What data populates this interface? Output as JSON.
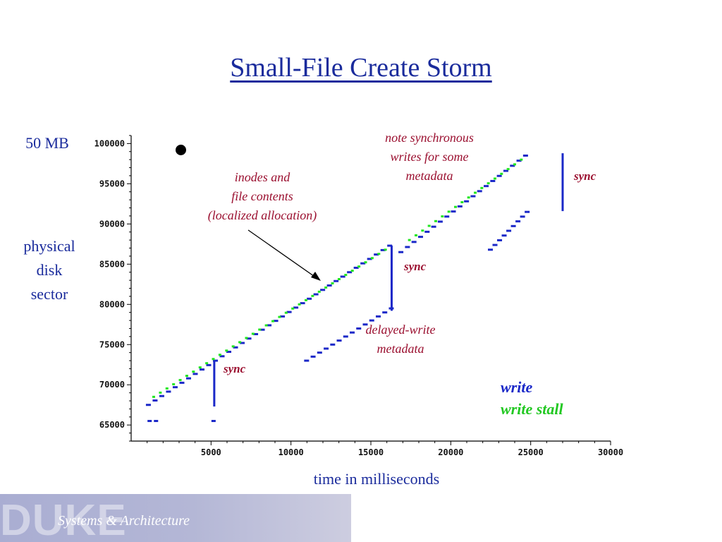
{
  "slide": {
    "title": "Small-File Create Storm",
    "label_50mb": "50 MB",
    "ylabel_lines": [
      "physical",
      "disk",
      "sector"
    ],
    "xlabel": "time in milliseconds",
    "annotations": {
      "inodes": [
        "inodes and",
        "file contents",
        "(localized allocation)"
      ],
      "note": [
        "note synchronous",
        "writes for some",
        "metadata"
      ],
      "delayed": [
        "delayed-write",
        "metadata"
      ]
    },
    "sync_labels": [
      "sync",
      "sync",
      "sync"
    ],
    "legend": {
      "write": "write",
      "write_stall": "write stall"
    },
    "footer": {
      "logo_text": "DUKE",
      "text": "Systems & Architecture"
    }
  },
  "colors": {
    "write": "#1a28c8",
    "write_stall": "#22e622",
    "accent": "#1a2b9c",
    "annotation": "#9b1030"
  },
  "chart_data": {
    "type": "scatter",
    "xlim": [
      0,
      30000
    ],
    "ylim": [
      63000,
      101000
    ],
    "xticks": [
      5000,
      10000,
      15000,
      20000,
      25000,
      30000
    ],
    "yticks": [
      65000,
      70000,
      75000,
      80000,
      85000,
      90000,
      95000,
      100000
    ],
    "grid": false,
    "series": [
      {
        "name": "write",
        "segments": [
          {
            "kind": "ramp",
            "x": [
              1100,
              16200
            ],
            "y": [
              67500,
              87300
            ]
          },
          {
            "kind": "ramp",
            "x": [
              16900,
              24700
            ],
            "y": [
              86500,
              98500
            ]
          },
          {
            "kind": "ramp",
            "x": [
              11000,
              16300
            ],
            "y": [
              73000,
              79500
            ]
          },
          {
            "kind": "ramp",
            "x": [
              22500,
              24800
            ],
            "y": [
              86800,
              91500
            ]
          },
          {
            "kind": "vertical",
            "x": 5200,
            "y": [
              67300,
              72900
            ]
          },
          {
            "kind": "vertical",
            "x": 16300,
            "y": [
              79200,
              87300
            ]
          },
          {
            "kind": "vertical",
            "x": 27000,
            "y": [
              91600,
              98800
            ]
          },
          {
            "kind": "points",
            "x": [
              1200,
              1600,
              5200
            ],
            "y": [
              65500,
              65500,
              65500
            ]
          }
        ]
      },
      {
        "name": "write stall",
        "segments": [
          {
            "kind": "ramp",
            "x": [
              1500,
              16000
            ],
            "y": [
              68500,
              86800
            ]
          },
          {
            "kind": "ramp",
            "x": [
              17500,
              24500
            ],
            "y": [
              88000,
              98000
            ]
          }
        ]
      }
    ]
  }
}
